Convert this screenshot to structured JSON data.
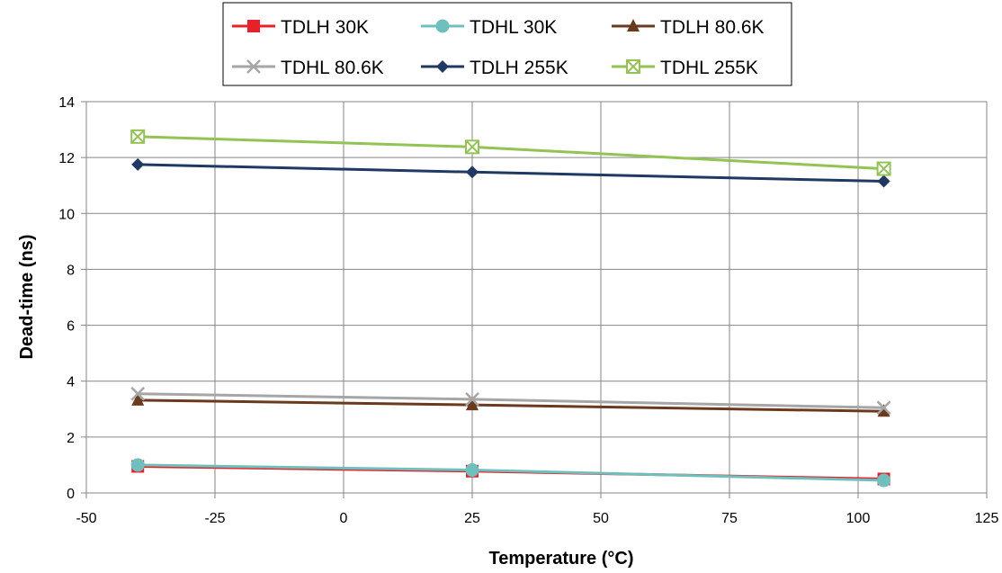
{
  "chart_data": {
    "type": "line",
    "xlabel": "Temperature (°C)",
    "ylabel": "Dead-time (ns)",
    "xlim": [
      -50,
      125
    ],
    "ylim": [
      0,
      14
    ],
    "xticks": [
      -50,
      -25,
      0,
      25,
      50,
      75,
      100,
      125
    ],
    "yticks": [
      0,
      2,
      4,
      6,
      8,
      10,
      12,
      14
    ],
    "x": [
      -40,
      25,
      105
    ],
    "grid": true,
    "legend_position": "top",
    "series": [
      {
        "name": "TDLH 30K",
        "values": [
          0.95,
          0.78,
          0.5
        ],
        "color": "#e8202a",
        "marker": "square"
      },
      {
        "name": "TDHL 30K",
        "values": [
          1.0,
          0.82,
          0.45
        ],
        "color": "#6ec0bd",
        "marker": "circle"
      },
      {
        "name": "TDLH 80.6K",
        "values": [
          3.32,
          3.15,
          2.92
        ],
        "color": "#6b3a1e",
        "marker": "triangle"
      },
      {
        "name": "TDHL 80.6K",
        "values": [
          3.55,
          3.35,
          3.05
        ],
        "color": "#a6a6a6",
        "marker": "x"
      },
      {
        "name": "TDLH 255K",
        "values": [
          11.75,
          11.48,
          11.15
        ],
        "color": "#1f3864",
        "marker": "diamond"
      },
      {
        "name": "TDHL 255K",
        "values": [
          12.75,
          12.38,
          11.6
        ],
        "color": "#92c353",
        "marker": "boxx"
      }
    ]
  }
}
